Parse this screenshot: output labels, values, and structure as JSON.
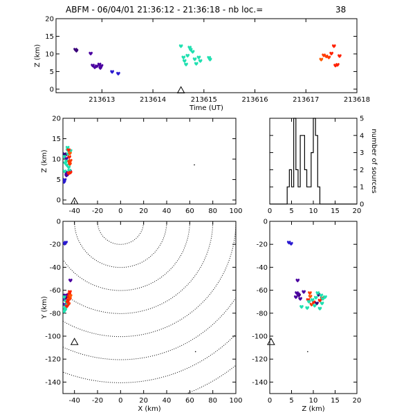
{
  "title": {
    "text": "ABFM - 06/04/01 21:36:12 - 21:36:18 - nb loc.=",
    "count": "38"
  },
  "chart_data": [
    {
      "id": "time-height",
      "type": "scatter",
      "xlabel": "Time (UT)",
      "ylabel": "Z (km)",
      "xlim": [
        213612.1,
        213618
      ],
      "ylim": [
        -1,
        20
      ],
      "xticks": [
        "213613",
        "213614",
        "213615",
        "213616",
        "213617",
        "213618"
      ],
      "yticks": [
        "0",
        "5",
        "10",
        "15",
        "20"
      ],
      "station": {
        "x": 213614.55,
        "y": -0.3
      },
      "points": [
        {
          "x": 213612.48,
          "y": 11.2,
          "c": "#3a007a"
        },
        {
          "x": 213612.5,
          "y": 10.9,
          "c": "#3a007a"
        },
        {
          "x": 213612.78,
          "y": 10.1,
          "c": "#4a00a0"
        },
        {
          "x": 213612.82,
          "y": 6.7,
          "c": "#4a00a0"
        },
        {
          "x": 213612.86,
          "y": 6.2,
          "c": "#4a00a0"
        },
        {
          "x": 213612.9,
          "y": 6.5,
          "c": "#4a00a0"
        },
        {
          "x": 213612.95,
          "y": 7.0,
          "c": "#4a00a0"
        },
        {
          "x": 213612.97,
          "y": 6.0,
          "c": "#4a00a0"
        },
        {
          "x": 213612.99,
          "y": 6.6,
          "c": "#4a00a0"
        },
        {
          "x": 213613.2,
          "y": 4.9,
          "c": "#2a1ad0"
        },
        {
          "x": 213613.32,
          "y": 4.4,
          "c": "#2a1ad0"
        },
        {
          "x": 213614.55,
          "y": 12.2,
          "c": "#20e0b0"
        },
        {
          "x": 213614.6,
          "y": 9.0,
          "c": "#20e0b0"
        },
        {
          "x": 213614.62,
          "y": 8.0,
          "c": "#20e0b0"
        },
        {
          "x": 213614.65,
          "y": 7.0,
          "c": "#20e0b0"
        },
        {
          "x": 213614.68,
          "y": 9.5,
          "c": "#20e0b0"
        },
        {
          "x": 213614.72,
          "y": 11.8,
          "c": "#20e0b0"
        },
        {
          "x": 213614.74,
          "y": 11.2,
          "c": "#20e0b0"
        },
        {
          "x": 213614.78,
          "y": 10.6,
          "c": "#20e0b0"
        },
        {
          "x": 213614.82,
          "y": 8.5,
          "c": "#20e0b0"
        },
        {
          "x": 213614.85,
          "y": 7.2,
          "c": "#20e0b0"
        },
        {
          "x": 213614.9,
          "y": 9.0,
          "c": "#20e0b0"
        },
        {
          "x": 213614.93,
          "y": 8.0,
          "c": "#20e0b0"
        },
        {
          "x": 213615.1,
          "y": 8.9,
          "c": "#20e0b0"
        },
        {
          "x": 213615.12,
          "y": 8.4,
          "c": "#20e0b0"
        },
        {
          "x": 213617.3,
          "y": 8.4,
          "c": "#ff5a00"
        },
        {
          "x": 213617.35,
          "y": 9.6,
          "c": "#ff3a00"
        },
        {
          "x": 213617.4,
          "y": 9.3,
          "c": "#ff3a00"
        },
        {
          "x": 213617.45,
          "y": 9.0,
          "c": "#ff3a00"
        },
        {
          "x": 213617.5,
          "y": 10.1,
          "c": "#ff2000"
        },
        {
          "x": 213617.55,
          "y": 12.2,
          "c": "#ff2000"
        },
        {
          "x": 213617.58,
          "y": 6.7,
          "c": "#ff2000"
        },
        {
          "x": 213617.62,
          "y": 6.9,
          "c": "#ff2000"
        },
        {
          "x": 213617.66,
          "y": 9.4,
          "c": "#ff2000"
        }
      ]
    },
    {
      "id": "x-height",
      "type": "scatter",
      "ylabel": "Z (km)",
      "xlim": [
        -50,
        100
      ],
      "ylim": [
        -1,
        20
      ],
      "xticks": [
        "-40",
        "-20",
        "0",
        "20",
        "40",
        "60",
        "80",
        "100"
      ],
      "yticks": [
        "0",
        "5",
        "10",
        "15",
        "20"
      ],
      "station": {
        "x": -40,
        "y": -0.3
      },
      "points": [
        {
          "x": -48.5,
          "y": 11.2,
          "c": "#3a007a"
        },
        {
          "x": -48,
          "y": 10.9,
          "c": "#3a007a"
        },
        {
          "x": -47,
          "y": 10.1,
          "c": "#4a00a0"
        },
        {
          "x": -47.5,
          "y": 6.7,
          "c": "#4a00a0"
        },
        {
          "x": -46,
          "y": 6.2,
          "c": "#4a00a0"
        },
        {
          "x": -45,
          "y": 6.5,
          "c": "#4a00a0"
        },
        {
          "x": -44,
          "y": 7.0,
          "c": "#4a00a0"
        },
        {
          "x": -47,
          "y": 6.0,
          "c": "#4a00a0"
        },
        {
          "x": -48.5,
          "y": 4.9,
          "c": "#2a1ad0"
        },
        {
          "x": -49,
          "y": 4.4,
          "c": "#2a1ad0"
        },
        {
          "x": -46,
          "y": 12.2,
          "c": "#20e0b0"
        },
        {
          "x": -48,
          "y": 9.0,
          "c": "#20e0b0"
        },
        {
          "x": -45,
          "y": 8.0,
          "c": "#20e0b0"
        },
        {
          "x": -48.5,
          "y": 7.0,
          "c": "#20e0b0"
        },
        {
          "x": -47,
          "y": 9.5,
          "c": "#20e0b0"
        },
        {
          "x": -44,
          "y": 11.8,
          "c": "#20e0b0"
        },
        {
          "x": -45.5,
          "y": 11.2,
          "c": "#20e0b0"
        },
        {
          "x": -49,
          "y": 10.6,
          "c": "#20e0b0"
        },
        {
          "x": -46.5,
          "y": 8.5,
          "c": "#20e0b0"
        },
        {
          "x": -44.5,
          "y": 7.2,
          "c": "#20e0b0"
        },
        {
          "x": -46,
          "y": 12.8,
          "c": "#20e0b0"
        },
        {
          "x": -43.5,
          "y": 12.0,
          "c": "#20e0b0"
        },
        {
          "x": -44,
          "y": 11.4,
          "c": "#ff5a00"
        },
        {
          "x": -43.5,
          "y": 9.6,
          "c": "#ff3a00"
        },
        {
          "x": -44.5,
          "y": 9.3,
          "c": "#ff3a00"
        },
        {
          "x": -44,
          "y": 8.8,
          "c": "#ff3a00"
        },
        {
          "x": -44.5,
          "y": 10.5,
          "c": "#ff2000"
        },
        {
          "x": -45,
          "y": 12.2,
          "c": "#ff2000"
        },
        {
          "x": -43.5,
          "y": 6.7,
          "c": "#ff2000"
        },
        {
          "x": -45,
          "y": 6.5,
          "c": "#ff2000"
        },
        {
          "x": 64,
          "y": 8.6,
          "c": "#000000",
          "small": true
        }
      ]
    },
    {
      "id": "height-histogram",
      "type": "line",
      "ylabel": "number of sources",
      "xlim": [
        0,
        20
      ],
      "ylim": [
        0,
        5
      ],
      "xticks": [
        "0",
        "5",
        "10",
        "15",
        "20"
      ],
      "yticks": [
        "0",
        "1",
        "2",
        "3",
        "4",
        "5"
      ],
      "bin_width": 0.5,
      "bins_start": 4.0,
      "counts": [
        1,
        2,
        1,
        5,
        2,
        1,
        4,
        4,
        2,
        1,
        1,
        3,
        5,
        4,
        1,
        0
      ],
      "x_end": 20
    },
    {
      "id": "plan-view",
      "type": "scatter",
      "xlabel": "X (km)",
      "ylabel": "Y (km)",
      "xlim": [
        -50,
        100
      ],
      "ylim": [
        -150,
        0
      ],
      "xticks": [
        "-40",
        "-20",
        "0",
        "20",
        "40",
        "60",
        "80",
        "100"
      ],
      "yticks": [
        "-140",
        "-120",
        "-100",
        "-80",
        "-60",
        "-40",
        "-20",
        "0"
      ],
      "range_rings_center": {
        "x": 0,
        "y": 0
      },
      "range_rings_km": [
        20,
        40,
        60,
        80,
        100,
        120,
        140,
        160
      ],
      "station": {
        "x": -40,
        "y": -105
      },
      "points": [
        {
          "x": -48.5,
          "y": -19.5,
          "c": "#2a1ad0"
        },
        {
          "x": -47.5,
          "y": -18.5,
          "c": "#2a1ad0"
        },
        {
          "x": -43.5,
          "y": -51.5,
          "c": "#4a00a0"
        },
        {
          "x": -48,
          "y": -64.5,
          "c": "#4a00a0"
        },
        {
          "x": -47.5,
          "y": -66.5,
          "c": "#3a007a"
        },
        {
          "x": -49,
          "y": -68,
          "c": "#4a00a0"
        },
        {
          "x": -46,
          "y": -70,
          "c": "#4a00a0"
        },
        {
          "x": -48.5,
          "y": -72.5,
          "c": "#4a00a0"
        },
        {
          "x": -45,
          "y": -64,
          "c": "#4a00a0"
        },
        {
          "x": -47,
          "y": -73.5,
          "c": "#20e0b0"
        },
        {
          "x": -48.5,
          "y": -75.5,
          "c": "#20e0b0"
        },
        {
          "x": -49,
          "y": -78.5,
          "c": "#20e0b0"
        },
        {
          "x": -47.5,
          "y": -69.5,
          "c": "#20e0b0"
        },
        {
          "x": -46.5,
          "y": -71,
          "c": "#20e0b0"
        },
        {
          "x": -49,
          "y": -66,
          "c": "#20e0b0"
        },
        {
          "x": -48,
          "y": -77,
          "c": "#20e0b0"
        },
        {
          "x": -44,
          "y": -61.5,
          "c": "#ff2000"
        },
        {
          "x": -44.5,
          "y": -63.5,
          "c": "#ff2000"
        },
        {
          "x": -45,
          "y": -66,
          "c": "#ff2000"
        },
        {
          "x": -45.5,
          "y": -68.5,
          "c": "#ff2000"
        },
        {
          "x": -46,
          "y": -70.5,
          "c": "#ff2000"
        },
        {
          "x": -45,
          "y": -72,
          "c": "#ff3a00"
        },
        {
          "x": -44,
          "y": -67.5,
          "c": "#ff3a00"
        },
        {
          "x": -43.5,
          "y": -65,
          "c": "#ff5a00"
        },
        {
          "x": -46.5,
          "y": -74,
          "c": "#ff2000"
        },
        {
          "x": 65,
          "y": -113.5,
          "c": "#000000",
          "small": true
        }
      ]
    },
    {
      "id": "z-y-view",
      "type": "scatter",
      "xlabel": "Z (km)",
      "xlim": [
        0,
        20
      ],
      "ylim": [
        -150,
        0
      ],
      "xticks": [
        "0",
        "5",
        "10",
        "15",
        "20"
      ],
      "yticks": [
        "-140",
        "-120",
        "-100",
        "-80",
        "-60",
        "-40",
        "-20",
        "0"
      ],
      "station": {
        "x": 0.3,
        "y": -105
      },
      "points": [
        {
          "x": 4.9,
          "y": -19.5,
          "c": "#2a1ad0"
        },
        {
          "x": 4.4,
          "y": -18.5,
          "c": "#2a1ad0"
        },
        {
          "x": 6.4,
          "y": -51.5,
          "c": "#4a00a0"
        },
        {
          "x": 6.2,
          "y": -62.5,
          "c": "#4a00a0"
        },
        {
          "x": 6.7,
          "y": -64.5,
          "c": "#3a007a"
        },
        {
          "x": 7.0,
          "y": -67.5,
          "c": "#4a00a0"
        },
        {
          "x": 6.0,
          "y": -66,
          "c": "#4a00a0"
        },
        {
          "x": 6.5,
          "y": -63.5,
          "c": "#4a00a0"
        },
        {
          "x": 7.8,
          "y": -61.5,
          "c": "#4a00a0"
        },
        {
          "x": 8.8,
          "y": -68.5,
          "c": "#ff2000"
        },
        {
          "x": 9.2,
          "y": -62.5,
          "c": "#ff3a00"
        },
        {
          "x": 9.6,
          "y": -72.5,
          "c": "#ff3a00"
        },
        {
          "x": 10.1,
          "y": -70.5,
          "c": "#ff2000"
        },
        {
          "x": 9.3,
          "y": -65.5,
          "c": "#ff5a00"
        },
        {
          "x": 11.5,
          "y": -69,
          "c": "#ff2000"
        },
        {
          "x": 12.0,
          "y": -67,
          "c": "#ff2000"
        },
        {
          "x": 10.8,
          "y": -71.5,
          "c": "#3a007a"
        },
        {
          "x": 11.2,
          "y": -64,
          "c": "#3a007a"
        },
        {
          "x": 7.3,
          "y": -74.5,
          "c": "#20e0b0"
        },
        {
          "x": 8.6,
          "y": -75.5,
          "c": "#20e0b0"
        },
        {
          "x": 9.8,
          "y": -68.5,
          "c": "#20e0b0"
        },
        {
          "x": 10.6,
          "y": -66.5,
          "c": "#20e0b0"
        },
        {
          "x": 11.0,
          "y": -62.5,
          "c": "#20e0b0"
        },
        {
          "x": 11.8,
          "y": -64.5,
          "c": "#20e0b0"
        },
        {
          "x": 12.2,
          "y": -67.5,
          "c": "#20e0b0"
        },
        {
          "x": 12.7,
          "y": -66,
          "c": "#20e0b0"
        },
        {
          "x": 12.0,
          "y": -71.5,
          "c": "#20e0b0"
        },
        {
          "x": 10.3,
          "y": -73.5,
          "c": "#20e0b0"
        },
        {
          "x": 11.5,
          "y": -76,
          "c": "#20e0b0"
        },
        {
          "x": 9.0,
          "y": -70,
          "c": "#20e0b0"
        },
        {
          "x": 8.7,
          "y": -113.5,
          "c": "#000000",
          "small": true
        }
      ]
    }
  ]
}
